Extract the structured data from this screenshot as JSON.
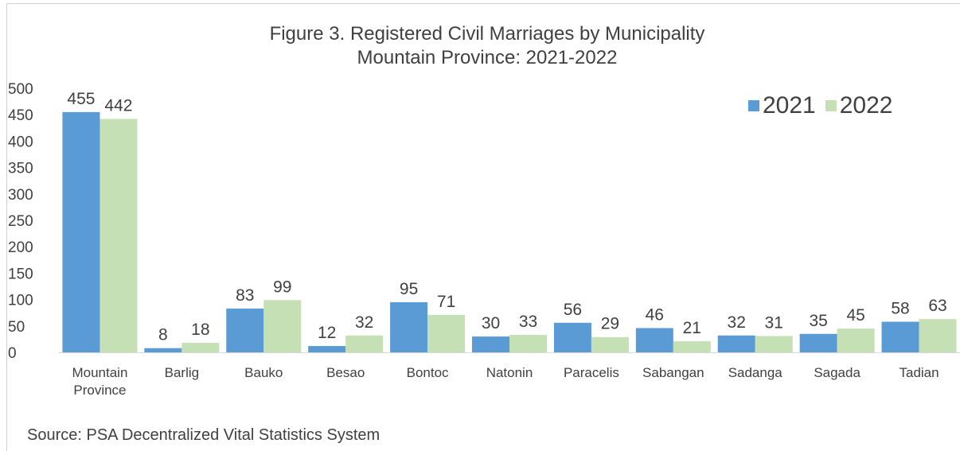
{
  "title_line1": "Figure 3.  Registered Civil Marriages by Municipality",
  "title_line2": "Mountain Province: 2021-2022",
  "source": "Source: PSA Decentralized Vital Statistics System",
  "colors": {
    "s2021": "#5b9bd5",
    "s2022": "#c5e0b4",
    "text": "#404040"
  },
  "chart_data": {
    "type": "bar",
    "title": "Figure 3.  Registered Civil Marriages by Municipality Mountain Province: 2021-2022",
    "xlabel": "",
    "ylabel": "",
    "ylim": [
      0,
      500
    ],
    "yticks": [
      0,
      50,
      100,
      150,
      200,
      250,
      300,
      350,
      400,
      450,
      500
    ],
    "grid": false,
    "legend_position": "top-right",
    "categories": [
      "Mountain Province",
      "Barlig",
      "Bauko",
      "Besao",
      "Bontoc",
      "Natonin",
      "Paracelis",
      "Sabangan",
      "Sadanga",
      "Sagada",
      "Tadian"
    ],
    "series": [
      {
        "name": "2021",
        "values": [
          455,
          8,
          83,
          12,
          95,
          30,
          56,
          46,
          32,
          35,
          58
        ]
      },
      {
        "name": "2022",
        "values": [
          442,
          18,
          99,
          32,
          71,
          33,
          29,
          21,
          31,
          45,
          63
        ]
      }
    ]
  }
}
